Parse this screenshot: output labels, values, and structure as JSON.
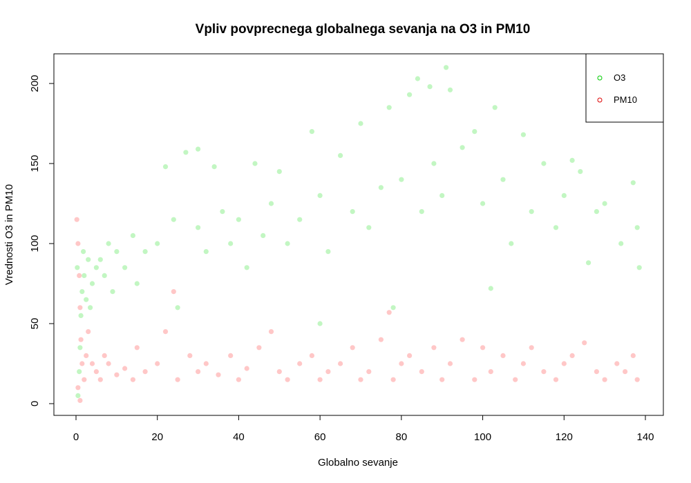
{
  "chart_data": {
    "type": "scatter",
    "title": "Vpliv povprecnega globalnega sevanja na O3 in PM10",
    "xlabel": "Globalno sevanje",
    "ylabel": "Vrednosti O3 in PM10",
    "xlim": [
      0,
      140
    ],
    "ylim": [
      0,
      210
    ],
    "x_ticks": [
      "0",
      "20",
      "40",
      "60",
      "80",
      "100",
      "120",
      "140"
    ],
    "y_ticks": [
      "0",
      "50",
      "100",
      "150",
      "200"
    ],
    "grid": false,
    "legend_position": "top-right",
    "series": [
      {
        "name": "O3",
        "color": "#90EE90",
        "marker_color": "#00CC00",
        "points": [
          [
            0.5,
            5
          ],
          [
            0.8,
            20
          ],
          [
            1.0,
            35
          ],
          [
            1.2,
            55
          ],
          [
            1.5,
            70
          ],
          [
            2.0,
            80
          ],
          [
            2.5,
            65
          ],
          [
            3.0,
            90
          ],
          [
            0.3,
            85
          ],
          [
            1.8,
            95
          ],
          [
            3.5,
            60
          ],
          [
            4.0,
            75
          ],
          [
            5.0,
            85
          ],
          [
            6.0,
            90
          ],
          [
            7.0,
            80
          ],
          [
            8.0,
            100
          ],
          [
            9.0,
            70
          ],
          [
            10.0,
            95
          ],
          [
            12.0,
            85
          ],
          [
            14.0,
            105
          ],
          [
            15.0,
            75
          ],
          [
            17.0,
            95
          ],
          [
            20.0,
            100
          ],
          [
            22.0,
            148
          ],
          [
            24.0,
            115
          ],
          [
            25.0,
            60
          ],
          [
            27.0,
            157
          ],
          [
            30.0,
            159
          ],
          [
            30.0,
            110
          ],
          [
            32.0,
            95
          ],
          [
            34.0,
            148
          ],
          [
            36.0,
            120
          ],
          [
            38.0,
            100
          ],
          [
            40.0,
            115
          ],
          [
            42.0,
            85
          ],
          [
            44.0,
            150
          ],
          [
            46.0,
            105
          ],
          [
            48.0,
            125
          ],
          [
            50.0,
            145
          ],
          [
            52.0,
            100
          ],
          [
            55.0,
            115
          ],
          [
            58.0,
            170
          ],
          [
            60.0,
            50
          ],
          [
            60.0,
            130
          ],
          [
            62.0,
            95
          ],
          [
            65.0,
            155
          ],
          [
            68.0,
            120
          ],
          [
            70.0,
            175
          ],
          [
            72.0,
            110
          ],
          [
            75.0,
            135
          ],
          [
            77.0,
            185
          ],
          [
            78.0,
            60
          ],
          [
            80.0,
            140
          ],
          [
            82.0,
            193
          ],
          [
            84.0,
            203
          ],
          [
            85.0,
            120
          ],
          [
            87.0,
            198
          ],
          [
            88.0,
            150
          ],
          [
            90.0,
            130
          ],
          [
            91.0,
            210
          ],
          [
            92.0,
            196
          ],
          [
            95.0,
            160
          ],
          [
            98.0,
            170
          ],
          [
            100.0,
            125
          ],
          [
            102.0,
            72
          ],
          [
            103.0,
            185
          ],
          [
            105.0,
            140
          ],
          [
            107.0,
            100
          ],
          [
            110.0,
            168
          ],
          [
            112.0,
            120
          ],
          [
            115.0,
            150
          ],
          [
            118.0,
            110
          ],
          [
            120.0,
            130
          ],
          [
            122.0,
            152
          ],
          [
            124.0,
            145
          ],
          [
            126.0,
            88
          ],
          [
            128.0,
            120
          ],
          [
            130.0,
            125
          ],
          [
            134.0,
            100
          ],
          [
            137.0,
            138
          ],
          [
            138.0,
            110
          ],
          [
            138.5,
            85
          ]
        ]
      },
      {
        "name": "PM10",
        "color": "#FF9999",
        "marker_color": "#DD0000",
        "points": [
          [
            0.2,
            115
          ],
          [
            0.5,
            100
          ],
          [
            0.8,
            80
          ],
          [
            1.0,
            60
          ],
          [
            1.2,
            40
          ],
          [
            1.5,
            25
          ],
          [
            2.0,
            15
          ],
          [
            2.5,
            30
          ],
          [
            3.0,
            45
          ],
          [
            0.5,
            10
          ],
          [
            1.0,
            2
          ],
          [
            4.0,
            25
          ],
          [
            5.0,
            20
          ],
          [
            6.0,
            15
          ],
          [
            7.0,
            30
          ],
          [
            8.0,
            25
          ],
          [
            10.0,
            18
          ],
          [
            12.0,
            22
          ],
          [
            14.0,
            15
          ],
          [
            15.0,
            35
          ],
          [
            17.0,
            20
          ],
          [
            20.0,
            25
          ],
          [
            22.0,
            45
          ],
          [
            24.0,
            70
          ],
          [
            25.0,
            15
          ],
          [
            28.0,
            30
          ],
          [
            30.0,
            20
          ],
          [
            32.0,
            25
          ],
          [
            35.0,
            18
          ],
          [
            38.0,
            30
          ],
          [
            40.0,
            15
          ],
          [
            42.0,
            22
          ],
          [
            45.0,
            35
          ],
          [
            48.0,
            45
          ],
          [
            50.0,
            20
          ],
          [
            52.0,
            15
          ],
          [
            55.0,
            25
          ],
          [
            58.0,
            30
          ],
          [
            60.0,
            15
          ],
          [
            62.0,
            20
          ],
          [
            65.0,
            25
          ],
          [
            68.0,
            35
          ],
          [
            70.0,
            15
          ],
          [
            72.0,
            20
          ],
          [
            75.0,
            40
          ],
          [
            77.0,
            57
          ],
          [
            78.0,
            15
          ],
          [
            80.0,
            25
          ],
          [
            82.0,
            30
          ],
          [
            85.0,
            20
          ],
          [
            88.0,
            35
          ],
          [
            90.0,
            15
          ],
          [
            92.0,
            25
          ],
          [
            95.0,
            40
          ],
          [
            98.0,
            15
          ],
          [
            100.0,
            35
          ],
          [
            102.0,
            20
          ],
          [
            105.0,
            30
          ],
          [
            108.0,
            15
          ],
          [
            110.0,
            25
          ],
          [
            112.0,
            35
          ],
          [
            115.0,
            20
          ],
          [
            118.0,
            15
          ],
          [
            120.0,
            25
          ],
          [
            122.0,
            30
          ],
          [
            125.0,
            38
          ],
          [
            128.0,
            20
          ],
          [
            130.0,
            15
          ],
          [
            133.0,
            25
          ],
          [
            135.0,
            20
          ],
          [
            137.0,
            30
          ],
          [
            138.0,
            15
          ]
        ]
      }
    ]
  }
}
